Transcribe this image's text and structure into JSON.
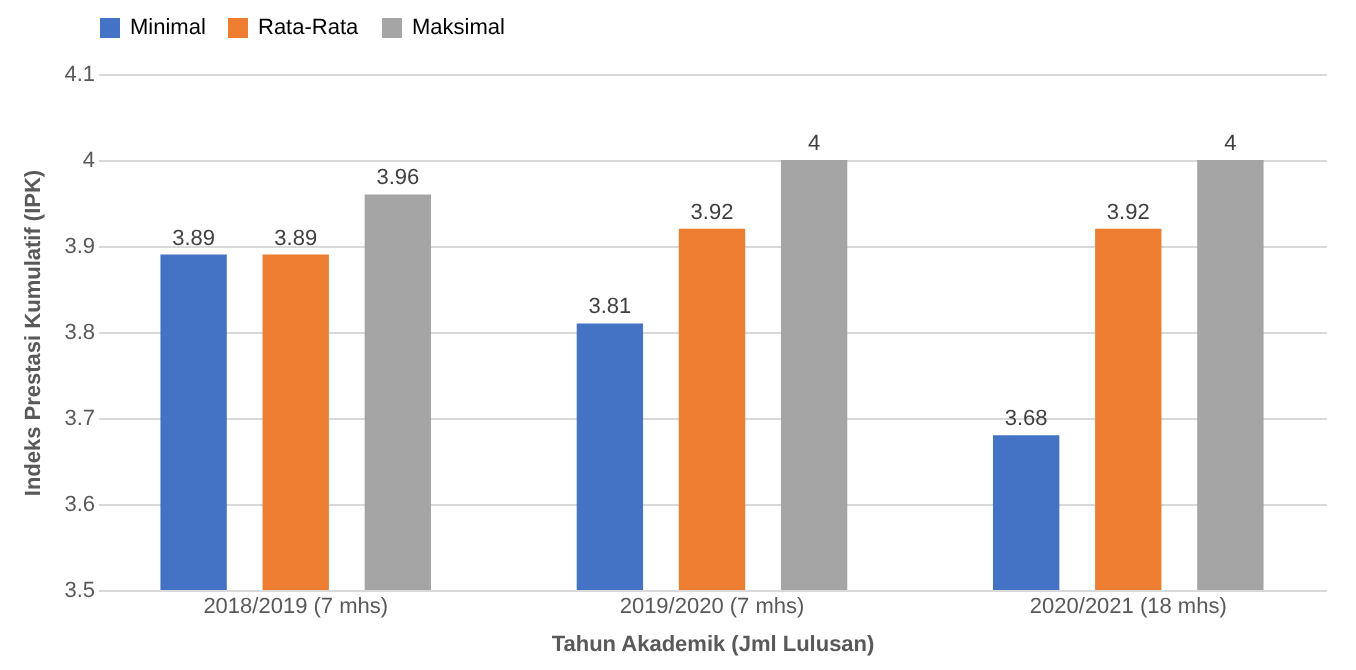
{
  "chart_data": {
    "type": "bar",
    "xlabel": "Tahun Akademik (Jml Lulusan)",
    "ylabel": "Indeks Prestasi Kumulatif (IPK)",
    "categories": [
      "2018/2019 (7 mhs)",
      "2019/2020 (7 mhs)",
      "2020/2021 (18 mhs)"
    ],
    "series": [
      {
        "name": "Minimal",
        "color": "#4472c4",
        "values": [
          3.89,
          3.81,
          3.68
        ]
      },
      {
        "name": "Rata-Rata",
        "color": "#ed7d31",
        "values": [
          3.89,
          3.92,
          3.92
        ]
      },
      {
        "name": "Maksimal",
        "color": "#a5a5a5",
        "values": [
          3.96,
          4,
          4
        ]
      }
    ],
    "ylim": [
      3.5,
      4.1
    ],
    "yticks": [
      3.5,
      3.6,
      3.7,
      3.8,
      3.9,
      4,
      4.1
    ],
    "grid": "y",
    "legend": "top",
    "data_labels": true
  }
}
